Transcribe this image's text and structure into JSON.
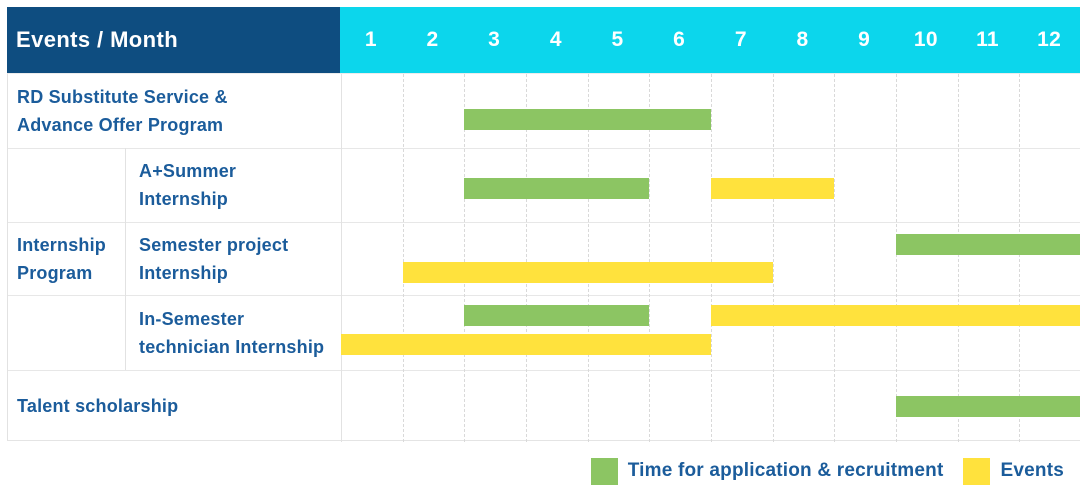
{
  "title": "Events / Month",
  "months": [
    "1",
    "2",
    "3",
    "4",
    "5",
    "6",
    "7",
    "8",
    "9",
    "10",
    "11",
    "12"
  ],
  "colors": {
    "header_navy": "#0E4D80",
    "header_cyan": "#0CD6EC",
    "green": "#8CC563",
    "yellow": "#FFE23D",
    "label_blue": "#1B5C9B"
  },
  "legend": {
    "application": "Time for application & recruitment",
    "events": "Events"
  },
  "chart_data": {
    "type": "gantt",
    "unit": "month",
    "x_range": [
      1,
      12
    ],
    "x_ticks": [
      "1",
      "2",
      "3",
      "4",
      "5",
      "6",
      "7",
      "8",
      "9",
      "10",
      "11",
      "12"
    ],
    "corner_header": "Events / Month",
    "group_label_lines": [
      "Internship",
      "Program"
    ],
    "rows": [
      {
        "group": "",
        "label": "RD Substitute Service & Advance Offer Program",
        "label_lines": [
          "RD Substitute Service &",
          "Advance Offer Program"
        ],
        "bars": [
          {
            "kind": "application",
            "start_month": 3,
            "end_month": 6,
            "lane": "single"
          }
        ]
      },
      {
        "group": "Internship Program",
        "label": "A+Summer Internship",
        "label_lines": [
          "A+Summer",
          "Internship"
        ],
        "bars": [
          {
            "kind": "application",
            "start_month": 3,
            "end_month": 5,
            "lane": "single"
          },
          {
            "kind": "event",
            "start_month": 7,
            "end_month": 8,
            "lane": "single"
          }
        ]
      },
      {
        "group": "Internship Program",
        "label": "Semester project Internship",
        "label_lines": [
          "Semester project",
          "Internship"
        ],
        "bars": [
          {
            "kind": "application",
            "start_month": 10,
            "end_month": 12,
            "lane": "upper"
          },
          {
            "kind": "event",
            "start_month": 2,
            "end_month": 7,
            "lane": "lower"
          }
        ]
      },
      {
        "group": "Internship Program",
        "label": "In-Semester technician Internship",
        "label_lines": [
          "In-Semester",
          "technician Internship"
        ],
        "bars": [
          {
            "kind": "application",
            "start_month": 3,
            "end_month": 5,
            "lane": "upper"
          },
          {
            "kind": "event",
            "start_month": 7,
            "end_month": 12,
            "lane": "upper"
          },
          {
            "kind": "event",
            "start_month": 1,
            "end_month": 6,
            "lane": "lower"
          }
        ]
      },
      {
        "group": "",
        "label": "Talent scholarship",
        "label_lines": [
          "Talent scholarship"
        ],
        "bars": [
          {
            "kind": "application",
            "start_month": 10,
            "end_month": 12,
            "lane": "single"
          }
        ]
      }
    ],
    "legend": [
      {
        "kind": "application",
        "label": "Time for application & recruitment",
        "color": "#8CC563"
      },
      {
        "kind": "event",
        "label": "Events",
        "color": "#FFE23D"
      }
    ]
  }
}
